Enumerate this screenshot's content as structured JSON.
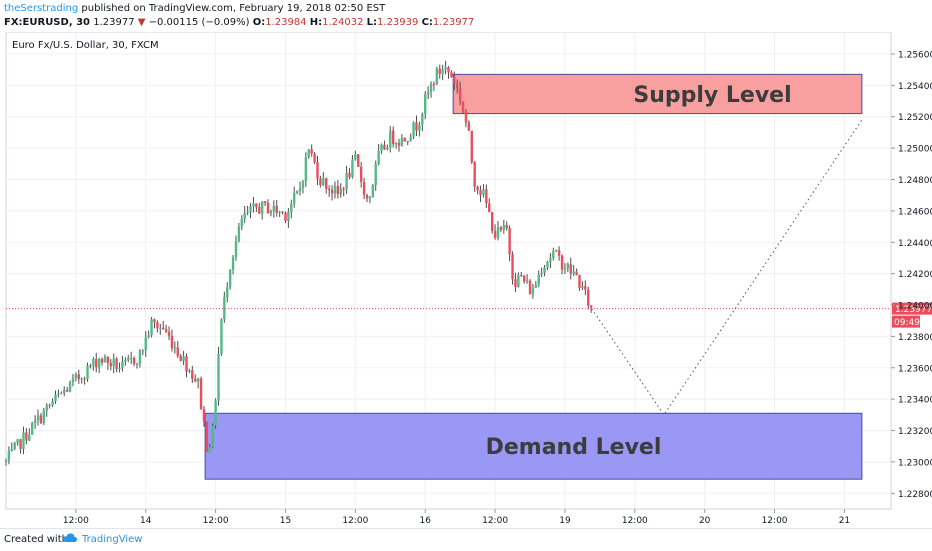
{
  "header": {
    "author": "theSerstrading",
    "published": "published on TradingView.com, February 19, 2018 02:50 EST",
    "symbol": "FX:EURUSD, 30",
    "last": "1.23977",
    "change": "−0.00115 (−0.09%)",
    "o_label": "O:",
    "o_value": "1.23984",
    "h_label": "H:",
    "h_value": "1.24032",
    "l_label": "L:",
    "l_value": "1.23939",
    "c_label": "C:",
    "c_value": "1.23977"
  },
  "footer": {
    "created": "Created with",
    "brand": "TradingView"
  },
  "chart_data": {
    "type": "candlestick",
    "title": "Euro Fx/U.S. Dollar, 30, FXCM",
    "y_ticks": [
      "1.22800",
      "1.23000",
      "1.23200",
      "1.23400",
      "1.23600",
      "1.23800",
      "1.24000",
      "1.24200",
      "1.24400",
      "1.24600",
      "1.24800",
      "1.25000",
      "1.25200",
      "1.25400",
      "1.25600"
    ],
    "ylim": [
      1.227,
      1.2574
    ],
    "x_ticks": [
      "12:00",
      "14",
      "12:00",
      "15",
      "12:00",
      "16",
      "12:00",
      "19",
      "12:00",
      "20",
      "12:00",
      "21"
    ],
    "x_tick_index": [
      6,
      12,
      18,
      24,
      30,
      36,
      42,
      48,
      54,
      60,
      66,
      72
    ],
    "xlim": [
      0,
      76
    ],
    "waypoints": [
      [
        0,
        1.23
      ],
      [
        2,
        1.232
      ],
      [
        4,
        1.2338
      ],
      [
        6,
        1.2352
      ],
      [
        8,
        1.2366
      ],
      [
        10,
        1.236
      ],
      [
        11.5,
        1.2368
      ],
      [
        12.5,
        1.2388
      ],
      [
        13.5,
        1.2385
      ],
      [
        15,
        1.2368
      ],
      [
        16.5,
        1.235
      ],
      [
        17.3,
        1.2308
      ],
      [
        17.8,
        1.232
      ],
      [
        18.4,
        1.2385
      ],
      [
        19.2,
        1.2425
      ],
      [
        20.3,
        1.2455
      ],
      [
        21.5,
        1.2462
      ],
      [
        22.5,
        1.2462
      ],
      [
        24,
        1.2458
      ],
      [
        25.2,
        1.2473
      ],
      [
        26,
        1.25
      ],
      [
        27,
        1.248
      ],
      [
        28.5,
        1.247
      ],
      [
        30,
        1.2492
      ],
      [
        31.1,
        1.2465
      ],
      [
        32,
        1.2495
      ],
      [
        33,
        1.2507
      ],
      [
        34,
        1.2505
      ],
      [
        35.3,
        1.2515
      ],
      [
        36,
        1.253
      ],
      [
        36.8,
        1.2545
      ],
      [
        37.6,
        1.2552
      ],
      [
        38.4,
        1.2545
      ],
      [
        39,
        1.2532
      ],
      [
        39.7,
        1.251
      ],
      [
        40.2,
        1.248
      ],
      [
        41,
        1.247
      ],
      [
        42,
        1.2445
      ],
      [
        43,
        1.2448
      ],
      [
        43.6,
        1.2415
      ],
      [
        44.2,
        1.2418
      ],
      [
        45.2,
        1.2408
      ],
      [
        46,
        1.2425
      ],
      [
        47,
        1.2433
      ],
      [
        48,
        1.2425
      ],
      [
        49,
        1.2418
      ],
      [
        50,
        1.2402
      ],
      [
        50.3,
        1.23977
      ]
    ],
    "projection": [
      [
        50.3,
        1.23977
      ],
      [
        56.5,
        1.233
      ],
      [
        73.5,
        1.2518
      ]
    ],
    "current_price": "1.23977",
    "countdown": "09:49",
    "zones": [
      {
        "label": "Supply Level",
        "from_x": 38.4,
        "to_x": 73.5,
        "y_low": 1.2522,
        "y_high": 1.2547,
        "fill": "#f8a0a0",
        "stroke": "#4a4a9e"
      },
      {
        "label": "Demand Level",
        "from_x": 17.1,
        "to_x": 73.5,
        "y_low": 1.2289,
        "y_high": 1.2331,
        "fill": "#9999f5",
        "stroke": "#4a4a9e"
      }
    ],
    "colors": {
      "up": "#53b987",
      "down": "#eb4d5c",
      "wick": "#4d4d4d",
      "price_line": "#eb4d5c",
      "projection": "#555555"
    }
  }
}
